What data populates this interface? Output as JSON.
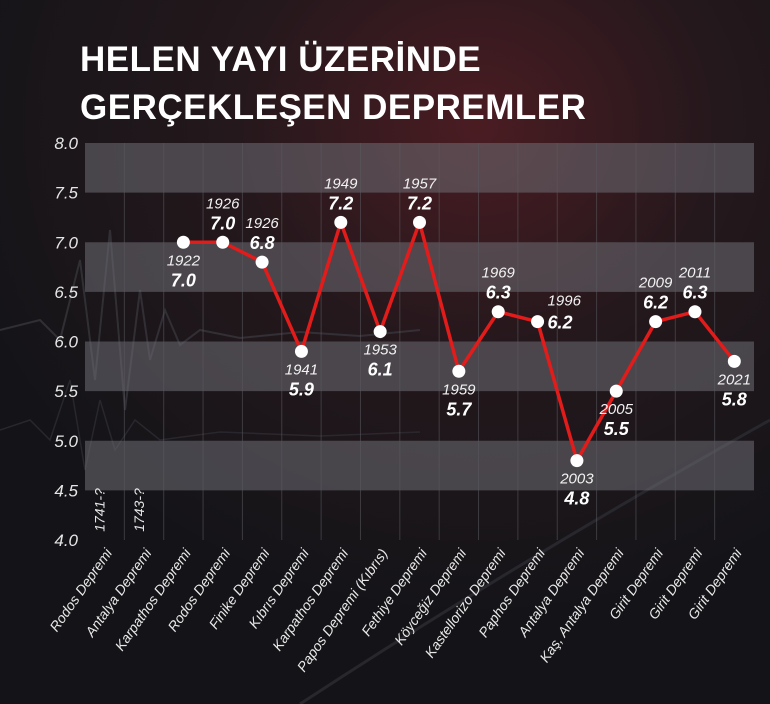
{
  "title_lines": [
    "HELEN YAYI ÜZERİNDE",
    "GERÇEKLEŞEN DEPREMLER"
  ],
  "colors": {
    "line": "#e21b1b",
    "point": "#ffffff",
    "band": "#6e6e74",
    "text": "#ffffff"
  },
  "chart_data": {
    "type": "line",
    "title": "HELEN YAYI ÜZERİNDE GERÇEKLEŞEN DEPREMLER",
    "xlabel": "",
    "ylabel": "",
    "ylim": [
      4.0,
      8.0
    ],
    "yticks": [
      "4.0",
      "4.5",
      "5.0",
      "5.5",
      "6.0",
      "6.5",
      "7.0",
      "7.5",
      "8.0"
    ],
    "grid": "alternating horizontal bands",
    "categories": [
      "Rodos Depremi",
      "Antalya Depremi",
      "Karpathos Depremi",
      "Rodos Depremi",
      "Finike Depremi",
      "Kıbrıs Depremi",
      "Karpathos Depremi",
      "Papos Depremi (Kıbrıs)",
      "Fethiye Depremi",
      "Köyceğiz Depremi",
      "Kastellorizo Depremi",
      "Paphos Depremi",
      "Antalya Depremi",
      "Kaş, Antalya Depremi",
      "Girit Depremi",
      "Girit Depremi",
      "Girit Depremi"
    ],
    "years": [
      "1741-?",
      "1743-?",
      "1922",
      "1926",
      "1926",
      "1941",
      "1949",
      "1953",
      "1957",
      "1959",
      "1969",
      "1996",
      "2003",
      "2005",
      "2009",
      "2011",
      "2021"
    ],
    "values": [
      null,
      null,
      7.0,
      7.0,
      6.8,
      5.9,
      7.2,
      6.1,
      7.2,
      5.7,
      6.3,
      6.2,
      4.8,
      5.5,
      6.2,
      6.3,
      5.8
    ],
    "value_labels": [
      "",
      "",
      "7.0",
      "7.0",
      "6.8",
      "5.9",
      "7.2",
      "6.1",
      "7.2",
      "5.7",
      "6.3",
      "6.2",
      "4.8",
      "5.5",
      "6.2",
      "6.3",
      "5.8"
    ]
  }
}
